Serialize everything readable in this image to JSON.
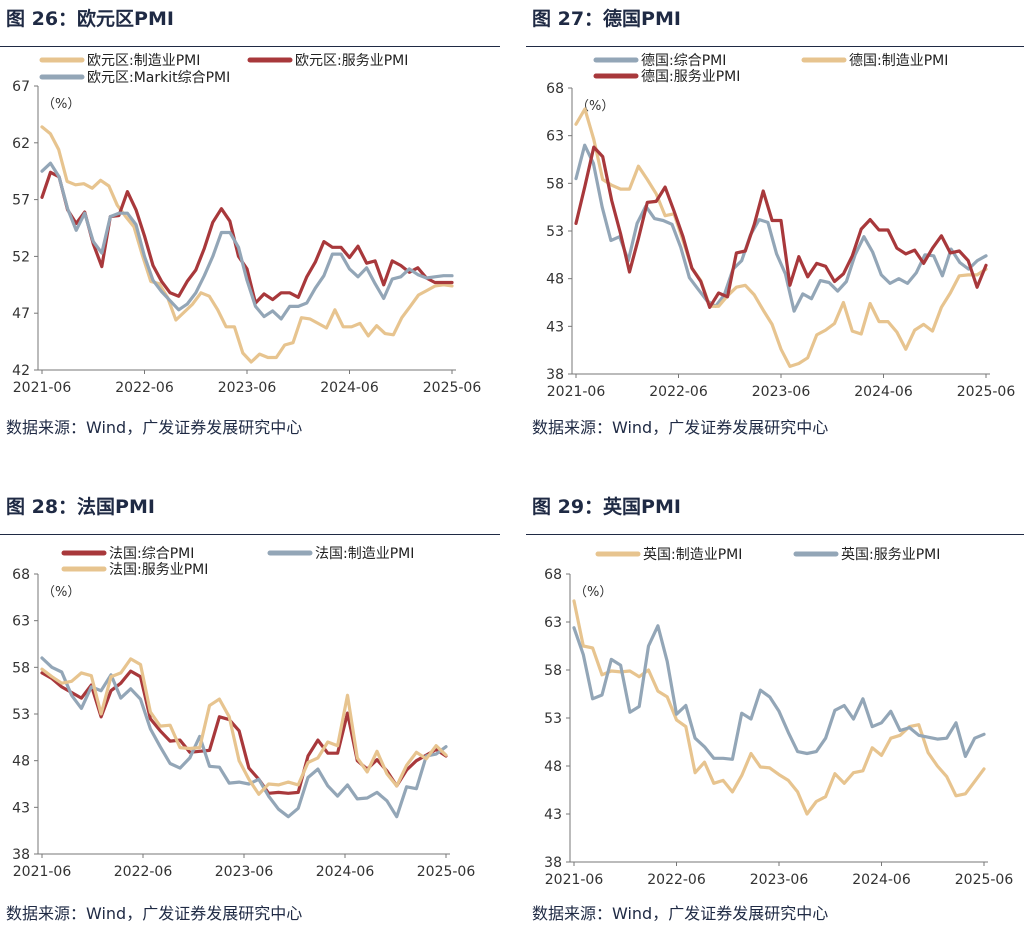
{
  "panels": [
    {
      "title": "图 26：欧元区PMI",
      "source": "数据来源：Wind，广发证券发展研究中心"
    },
    {
      "title": "图 27：德国PMI",
      "source": "数据来源：Wind，广发证券发展研究中心"
    },
    {
      "title": "图 28：法国PMI",
      "source": "数据来源：Wind，广发证券发展研究中心"
    },
    {
      "title": "图 29：英国PMI",
      "source": "数据来源：Wind，广发证券发展研究中心"
    }
  ],
  "chart_data": [
    {
      "type": "line",
      "unit_label": "（%）",
      "ylim": [
        42,
        67
      ],
      "yticks": [
        42,
        47,
        52,
        57,
        62,
        67
      ],
      "xticks": [
        "2021-06",
        "2022-06",
        "2023-06",
        "2024-06",
        "2025-06"
      ],
      "grid": false,
      "legend": "top",
      "series": [
        {
          "name": "欧元区:制造业PMI",
          "color": "#e7c48f",
          "values": [
            63.4,
            62.8,
            61.4,
            58.6,
            58.3,
            58.4,
            58.0,
            58.7,
            58.2,
            56.5,
            55.5,
            54.6,
            52.1,
            49.8,
            49.6,
            48.4,
            46.4,
            47.1,
            47.8,
            48.8,
            48.5,
            47.3,
            45.8,
            45.8,
            43.5,
            42.7,
            43.4,
            43.1,
            43.1,
            44.2,
            44.4,
            46.6,
            46.5,
            46.1,
            45.7,
            47.3,
            45.8,
            45.8,
            46.1,
            45.0,
            45.9,
            45.2,
            45.1,
            46.6,
            47.6,
            48.6,
            49.0,
            49.4,
            49.5,
            49.4
          ]
        },
        {
          "name": "欧元区:服务业PMI",
          "color": "#a8383b",
          "values": [
            57.2,
            59.4,
            59.0,
            56.1,
            54.9,
            55.9,
            53.1,
            51.1,
            55.5,
            55.6,
            57.7,
            56.1,
            53.8,
            51.2,
            49.8,
            48.8,
            48.5,
            49.8,
            50.8,
            52.7,
            55.0,
            56.2,
            55.1,
            52.0,
            50.9,
            47.9,
            48.7,
            48.2,
            48.8,
            48.8,
            48.4,
            50.2,
            51.5,
            53.3,
            52.8,
            52.8,
            51.9,
            52.9,
            51.4,
            51.6,
            49.5,
            51.6,
            51.2,
            50.6,
            51.0,
            50.1,
            49.7,
            49.7,
            49.7
          ]
        },
        {
          "name": "欧元区:Markit综合PMI",
          "color": "#93a6b7",
          "values": [
            59.5,
            60.2,
            59.0,
            56.2,
            54.3,
            55.8,
            53.3,
            52.3,
            55.5,
            55.8,
            55.8,
            54.8,
            52.0,
            49.9,
            48.9,
            48.1,
            47.3,
            47.8,
            48.8,
            50.3,
            52.0,
            54.1,
            54.1,
            52.8,
            49.9,
            47.6,
            46.7,
            47.2,
            46.5,
            47.6,
            47.6,
            47.9,
            49.2,
            50.3,
            52.2,
            52.2,
            50.9,
            50.2,
            51.0,
            49.6,
            48.3,
            50.0,
            50.2,
            50.9,
            50.4,
            50.1,
            50.2,
            50.3,
            50.3
          ]
        }
      ]
    },
    {
      "type": "line",
      "unit_label": "（%）",
      "ylim": [
        38,
        68
      ],
      "yticks": [
        38,
        43,
        48,
        53,
        58,
        63,
        68
      ],
      "xticks": [
        "2021-06",
        "2022-06",
        "2023-06",
        "2024-06",
        "2025-06"
      ],
      "grid": false,
      "legend": "top",
      "series": [
        {
          "name": "德国:综合PMI",
          "color": "#93a6b7",
          "values": [
            58.5,
            62.0,
            60.1,
            55.5,
            52.0,
            52.4,
            49.9,
            53.8,
            55.6,
            54.3,
            54.1,
            53.7,
            51.3,
            48.1,
            46.9,
            45.7,
            45.1,
            46.3,
            49.0,
            49.9,
            52.6,
            54.2,
            53.9,
            50.6,
            48.5,
            44.6,
            46.4,
            45.9,
            47.8,
            47.6,
            46.7,
            47.7,
            50.5,
            52.4,
            50.8,
            48.4,
            47.5,
            48.0,
            47.5,
            48.6,
            50.5,
            50.4,
            48.3,
            51.1,
            49.7,
            49.0,
            49.9,
            50.4
          ]
        },
        {
          "name": "德国:制造业PMI",
          "color": "#e7c48f",
          "values": [
            64.2,
            65.8,
            62.6,
            58.4,
            57.8,
            57.4,
            57.4,
            59.8,
            58.4,
            56.9,
            54.6,
            54.8,
            52.0,
            49.1,
            47.8,
            45.1,
            45.1,
            46.2,
            47.1,
            47.3,
            46.3,
            44.7,
            43.2,
            40.6,
            38.8,
            39.1,
            39.7,
            42.1,
            42.6,
            43.3,
            45.5,
            42.5,
            42.2,
            45.4,
            43.5,
            43.5,
            42.4,
            40.6,
            42.6,
            43.2,
            42.5,
            45.0,
            46.5,
            48.3,
            48.4,
            48.4,
            49.0
          ]
        },
        {
          "name": "德国:服务业PMI",
          "color": "#a8383b",
          "values": [
            53.8,
            57.7,
            61.8,
            60.8,
            56.2,
            52.7,
            48.7,
            52.2,
            56.0,
            56.1,
            57.6,
            55.1,
            52.4,
            49.1,
            47.7,
            45.0,
            46.5,
            46.1,
            50.7,
            50.9,
            53.7,
            57.2,
            54.1,
            54.1,
            47.3,
            50.3,
            48.2,
            49.6,
            49.3,
            47.7,
            48.5,
            50.4,
            53.2,
            54.2,
            53.1,
            53.1,
            51.2,
            50.6,
            51.0,
            49.6,
            51.2,
            52.5,
            50.7,
            50.9,
            49.9,
            47.1,
            49.4
          ]
        }
      ]
    },
    {
      "type": "line",
      "unit_label": "（%）",
      "ylim": [
        38,
        68
      ],
      "yticks": [
        38,
        43,
        48,
        53,
        58,
        63,
        68
      ],
      "xticks": [
        "2021-06",
        "2022-06",
        "2023-06",
        "2024-06",
        "2025-06"
      ],
      "grid": false,
      "legend": "top",
      "series": [
        {
          "name": "法国:综合PMI",
          "color": "#a8383b",
          "values": [
            57.4,
            56.8,
            55.9,
            55.3,
            54.7,
            56.1,
            52.7,
            55.5,
            56.3,
            57.6,
            57.0,
            52.5,
            51.2,
            50.1,
            50.2,
            48.9,
            49.0,
            49.1,
            52.7,
            52.4,
            51.2,
            47.2,
            46.0,
            44.5,
            44.6,
            44.5,
            44.6,
            48.5,
            50.2,
            48.8,
            48.8,
            53.1,
            48.0,
            47.1,
            48.1,
            46.9,
            45.3,
            47.0,
            48.0,
            48.6,
            49.2,
            48.5
          ]
        },
        {
          "name": "法国:制造业PMI",
          "color": "#93a6b7",
          "values": [
            59.0,
            58.0,
            57.5,
            55.0,
            53.6,
            55.9,
            55.5,
            57.2,
            54.7,
            55.7,
            54.6,
            51.4,
            49.5,
            47.7,
            47.2,
            48.3,
            50.6,
            47.4,
            47.3,
            45.6,
            45.7,
            45.5,
            46.0,
            44.2,
            42.8,
            42.0,
            42.9,
            46.2,
            47.1,
            45.3,
            44.2,
            45.4,
            43.9,
            44.0,
            44.6,
            43.7,
            42.0,
            45.2,
            45.0,
            48.5,
            48.7,
            49.5
          ]
        },
        {
          "name": "法国:服务业PMI",
          "color": "#e7c48f",
          "values": [
            57.8,
            57.0,
            56.3,
            56.5,
            57.4,
            57.1,
            53.0,
            57.0,
            57.4,
            58.9,
            58.3,
            53.2,
            51.7,
            51.8,
            49.4,
            49.3,
            49.4,
            53.9,
            54.6,
            52.7,
            48.0,
            46.0,
            44.4,
            45.5,
            45.4,
            45.7,
            45.4,
            47.8,
            48.3,
            50.0,
            49.6,
            55.0,
            48.3,
            46.8,
            49.0,
            46.6,
            45.3,
            47.5,
            48.9,
            48.2,
            49.6,
            48.6
          ]
        }
      ]
    },
    {
      "type": "line",
      "unit_label": "（%）",
      "ylim": [
        38,
        68
      ],
      "yticks": [
        38,
        43,
        48,
        53,
        58,
        63,
        68
      ],
      "xticks": [
        "2021-06",
        "2022-06",
        "2023-06",
        "2024-06",
        "2025-06"
      ],
      "grid": false,
      "legend": "top",
      "series": [
        {
          "name": "英国:制造业PMI",
          "color": "#e7c48f",
          "values": [
            65.2,
            60.5,
            60.3,
            57.5,
            57.9,
            57.8,
            57.9,
            57.3,
            58.0,
            55.8,
            55.2,
            52.8,
            52.1,
            47.3,
            48.4,
            46.2,
            46.5,
            45.3,
            47.0,
            49.3,
            47.9,
            47.8,
            47.1,
            46.5,
            45.3,
            43.0,
            44.3,
            44.8,
            47.2,
            46.2,
            47.3,
            47.5,
            49.9,
            49.1,
            50.9,
            51.2,
            52.1,
            52.3,
            49.4,
            48.0,
            46.9,
            44.9,
            45.1,
            46.4,
            47.7
          ]
        },
        {
          "name": "英国:服务业PMI",
          "color": "#93a6b7",
          "values": [
            62.4,
            59.6,
            55.0,
            55.4,
            59.1,
            58.5,
            53.6,
            54.2,
            60.5,
            62.6,
            58.9,
            53.4,
            54.3,
            50.9,
            50.0,
            48.8,
            48.8,
            48.7,
            53.5,
            52.9,
            55.9,
            55.2,
            53.7,
            51.5,
            49.5,
            49.3,
            49.5,
            50.9,
            53.8,
            54.3,
            52.9,
            55.0,
            52.1,
            52.5,
            53.7,
            51.7,
            52.0,
            51.2,
            51.0,
            50.8,
            50.9,
            52.5,
            49.0,
            50.9,
            51.3
          ]
        }
      ]
    }
  ]
}
